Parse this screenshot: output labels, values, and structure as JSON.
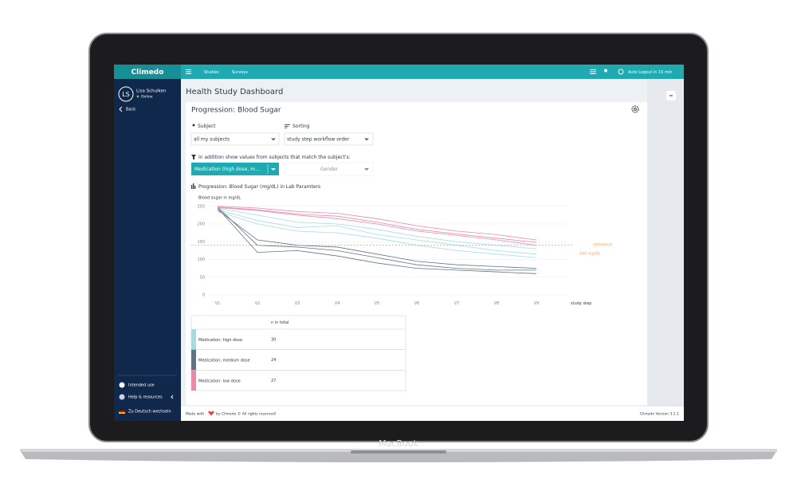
{
  "device": "MacBook",
  "topbar": {
    "logo": "Climedo",
    "nav": [
      "Studies",
      "Surveys"
    ],
    "logout": "Auto Logout in 15 min"
  },
  "sidebar": {
    "initials": "LS",
    "user": "Lisa Schulken",
    "status": "Online",
    "back": "Back",
    "links": [
      "Intended use",
      "Help & resources",
      "Zu Deutsch wechseln"
    ]
  },
  "page_title": "Health Study Dashboard",
  "card": {
    "title": "Progression: Blood Sugar",
    "subject_label": "Subject",
    "subject_value": "all my subjects",
    "sorting_label": "Sorting",
    "sorting_value": "study step workflow order",
    "filter_label": "In addition show values from subjects that match the subject's:",
    "filter_value": "Medication (high dose, m...",
    "gender": "Gender"
  },
  "chart": {
    "type": "line",
    "title": "Progression: Blood Sugar (mg/dL) in Lab Paramters",
    "y_label": "Blood sugar in mg/dL",
    "x_label": "study step",
    "categories": [
      "V1",
      "V2",
      "V3",
      "V4",
      "V5",
      "V6",
      "V7",
      "V8",
      "V9"
    ],
    "ylim": [
      0,
      250
    ],
    "yticks": [
      0,
      50,
      100,
      150,
      200,
      250
    ],
    "grid": true,
    "reference": {
      "name": "reference",
      "value": 140,
      "label": "140 mg/dL",
      "color": "#f4a460"
    },
    "groups": [
      {
        "name": "Medication: high dose",
        "n": 30,
        "color": "#a8dbe0",
        "lines": [
          [
            245,
            225,
            205,
            200,
            185,
            165,
            150,
            140,
            130
          ],
          [
            240,
            210,
            190,
            195,
            170,
            155,
            140,
            125,
            115
          ],
          [
            235,
            200,
            180,
            175,
            160,
            140,
            125,
            115,
            105
          ]
        ]
      },
      {
        "name": "Medication: medium dose",
        "n": 24,
        "color": "#5f7585",
        "lines": [
          [
            248,
            140,
            135,
            125,
            105,
            85,
            75,
            70,
            70
          ],
          [
            245,
            120,
            125,
            110,
            90,
            75,
            70,
            65,
            60
          ],
          [
            240,
            155,
            140,
            135,
            115,
            95,
            85,
            80,
            75
          ]
        ]
      },
      {
        "name": "Medication: low dose",
        "n": 27,
        "color": "#e88aa8",
        "lines": [
          [
            250,
            245,
            235,
            230,
            215,
            195,
            180,
            170,
            155
          ],
          [
            248,
            240,
            228,
            222,
            205,
            185,
            172,
            160,
            148
          ],
          [
            246,
            238,
            225,
            215,
            200,
            180,
            168,
            155,
            140
          ]
        ]
      }
    ]
  },
  "table": {
    "header": "n in total"
  },
  "footer": {
    "made_with": "Made with",
    "rights": "by Climedo © All rights reserved!",
    "version": "Climedo Version 3.2.1"
  }
}
